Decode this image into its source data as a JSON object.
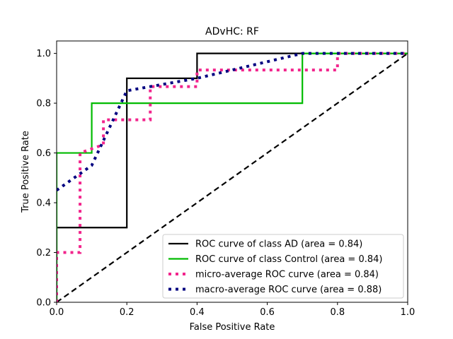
{
  "chart_data": {
    "type": "line",
    "title": "ADvHC: RF",
    "xlabel": "False Positive Rate",
    "ylabel": "True Positive Rate",
    "xlim": [
      0.0,
      1.0
    ],
    "ylim": [
      0.0,
      1.05
    ],
    "x_ticks": [
      "0.0",
      "0.2",
      "0.4",
      "0.6",
      "0.8",
      "1.0"
    ],
    "y_ticks": [
      "0.0",
      "0.2",
      "0.4",
      "0.6",
      "0.8",
      "1.0"
    ],
    "grid": false,
    "legend_position": "lower-right",
    "series": [
      {
        "name": "ROC curve of class  AD (area = 0.84)",
        "color": "#000000",
        "style": "solid",
        "x": [
          0,
          0,
          0.2,
          0.2,
          0.4,
          0.4,
          1.0
        ],
        "y": [
          0,
          0.3,
          0.3,
          0.9,
          0.9,
          1.0,
          1.0
        ]
      },
      {
        "name": "ROC curve of class  Control (area = 0.84)",
        "color": "#00bb00",
        "style": "solid",
        "x": [
          0,
          0,
          0.1,
          0.1,
          0.7,
          0.7,
          1.0
        ],
        "y": [
          0,
          0.6,
          0.6,
          0.8,
          0.8,
          1.0,
          1.0
        ]
      },
      {
        "name": "micro-average ROC curve (area = 0.84)",
        "color": "#f2248c",
        "style": "dotted",
        "x": [
          0,
          0,
          0.0667,
          0.0667,
          0.0667,
          0.0667,
          0.0667,
          0.0667,
          0.0667,
          0.1333,
          0.1333,
          0.1333,
          0.2667,
          0.2667,
          0.2667,
          0.2667,
          0.4,
          0.4,
          0.8,
          0.8,
          1.0
        ],
        "y": [
          0,
          0.2,
          0.2,
          0.3,
          0.5,
          0.6,
          0.6,
          0.6,
          0.6,
          0.6333,
          0.7333,
          0.7333,
          0.7333,
          0.8333,
          0.8667,
          0.8667,
          0.8667,
          0.9333,
          0.9333,
          1.0,
          1.0
        ]
      },
      {
        "name": "macro-average ROC curve (area = 0.88)",
        "color": "#000080",
        "style": "dotted",
        "x": [
          0,
          0.1,
          0.2,
          0.4,
          0.7,
          1.0
        ],
        "y": [
          0.45,
          0.55,
          0.85,
          0.9,
          1.0,
          1.0
        ]
      }
    ],
    "reference_line": {
      "color": "#000000",
      "style": "dashed",
      "x": [
        0,
        1
      ],
      "y": [
        0,
        1
      ]
    }
  }
}
